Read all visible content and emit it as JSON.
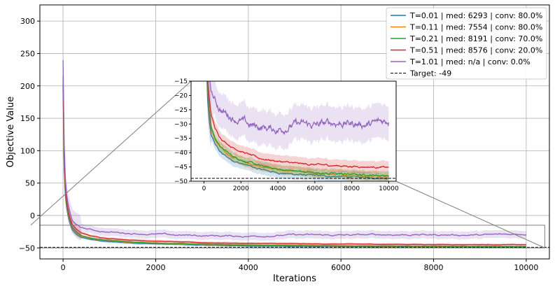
{
  "chart_data": {
    "type": "line",
    "xlabel": "Iterations",
    "ylabel": "Objective Value",
    "xlim": [
      -500,
      10500
    ],
    "ylim": [
      -67,
      325
    ],
    "xticks": [
      0,
      2000,
      4000,
      6000,
      8000,
      10000
    ],
    "yticks": [
      -50,
      0,
      50,
      100,
      150,
      200,
      250,
      300
    ],
    "grid": true,
    "legend_position": "top-right",
    "target": {
      "value": -49,
      "label": "Target: -49",
      "color": "#000000"
    },
    "series": [
      {
        "name": "T=0.01 | med: 6293 | conv: 80.0%",
        "color": "#1f77b4",
        "x": [
          0,
          20,
          50,
          80,
          120,
          160,
          200,
          300,
          400,
          600,
          800,
          1000,
          1500,
          2000,
          2500,
          3000,
          4000,
          5000,
          6000,
          7000,
          8000,
          9000,
          10000
        ],
        "y": [
          195,
          80,
          30,
          10,
          -5,
          -15,
          -22,
          -30,
          -34,
          -37,
          -39,
          -40.5,
          -42.5,
          -43.8,
          -44.8,
          -45.8,
          -47,
          -47.6,
          -48,
          -48.3,
          -48.5,
          -48.7,
          -48.8
        ],
        "band": 1.8
      },
      {
        "name": "T=0.11 | med: 7554 | conv: 80.0%",
        "color": "#ff7f0e",
        "x": [
          0,
          20,
          50,
          80,
          120,
          160,
          200,
          300,
          400,
          600,
          800,
          1000,
          1500,
          2000,
          2500,
          3000,
          4000,
          5000,
          6000,
          7000,
          8000,
          9000,
          10000
        ],
        "y": [
          200,
          85,
          34,
          13,
          -2,
          -12,
          -19,
          -27,
          -32,
          -35.5,
          -37.5,
          -39,
          -41.5,
          -42.8,
          -43.8,
          -44.8,
          -46,
          -46.7,
          -47.2,
          -47.6,
          -47.9,
          -48.1,
          -48.3
        ],
        "band": 1.6
      },
      {
        "name": "T=0.21 | med: 8191 | conv: 70.0%",
        "color": "#2ca02c",
        "x": [
          0,
          20,
          50,
          80,
          120,
          160,
          200,
          300,
          400,
          600,
          800,
          1000,
          1500,
          2000,
          2500,
          3000,
          4000,
          5000,
          6000,
          7000,
          8000,
          9000,
          10000
        ],
        "y": [
          205,
          90,
          36,
          15,
          0,
          -10,
          -18,
          -26,
          -31,
          -35,
          -37,
          -38.5,
          -41,
          -42.5,
          -43.5,
          -44.5,
          -45.8,
          -46.5,
          -47,
          -47.3,
          -47.6,
          -47.8,
          -48
        ],
        "band": 1.6
      },
      {
        "name": "T=0.51 | med: 8576 | conv: 20.0%",
        "color": "#d62728",
        "x": [
          0,
          20,
          50,
          80,
          120,
          160,
          200,
          300,
          400,
          600,
          800,
          1000,
          1500,
          2000,
          2500,
          3000,
          4000,
          5000,
          6000,
          7000,
          8000,
          9000,
          10000
        ],
        "y": [
          215,
          100,
          42,
          20,
          5,
          -6,
          -14,
          -22,
          -27,
          -31.5,
          -34,
          -35.5,
          -38,
          -39.5,
          -40.8,
          -42,
          -43,
          -43.8,
          -44.2,
          -44.5,
          -44.8,
          -45,
          -45.2
        ],
        "band": 2.2
      },
      {
        "name": "T=1.01 | med: n/a | conv: 0.0%",
        "color": "#9467bd",
        "x": [
          0,
          20,
          50,
          80,
          120,
          160,
          200,
          300,
          400,
          600,
          800,
          1000,
          1500,
          2000,
          2500,
          3000,
          4000,
          5000,
          6000,
          7000,
          8000,
          9000,
          10000
        ],
        "y": [
          240,
          120,
          55,
          30,
          14,
          2,
          -8,
          -15,
          -19,
          -22,
          -24,
          -25.5,
          -27.5,
          -29,
          -30.5,
          -31,
          -32,
          -30,
          -30.5,
          -29.5,
          -29.8,
          -30.2,
          -28.5
        ],
        "band": 6
      }
    ],
    "inset": {
      "xlim": [
        -700,
        10400
      ],
      "ylim": [
        -50,
        -15
      ],
      "xticks": [
        0,
        2000,
        4000,
        6000,
        8000,
        10000
      ],
      "yticks": [
        -50,
        -45,
        -40,
        -35,
        -30,
        -25,
        -20,
        -15
      ]
    }
  }
}
